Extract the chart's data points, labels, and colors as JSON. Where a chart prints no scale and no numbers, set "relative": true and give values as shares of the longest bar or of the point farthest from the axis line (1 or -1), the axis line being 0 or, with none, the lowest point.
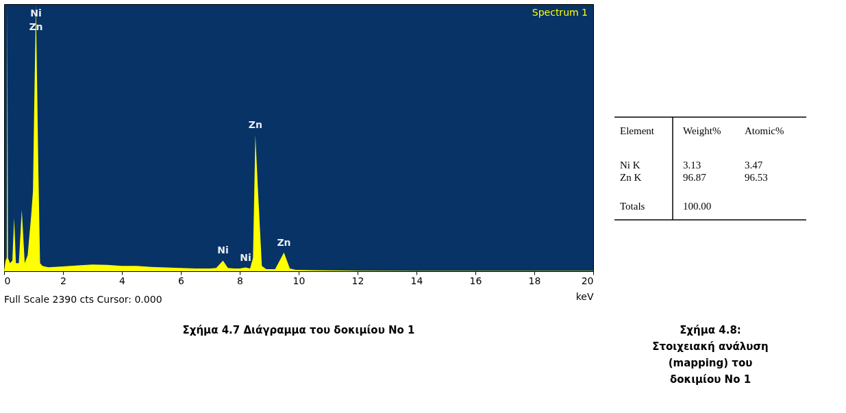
{
  "chart_data": [
    {
      "type": "area",
      "relative": true,
      "title": "Spectrum 1",
      "xlabel": "keV",
      "x": [
        0,
        0.05,
        0.09,
        0.11,
        0.13,
        0.2,
        0.28,
        0.34,
        0.4,
        0.5,
        0.6,
        0.7,
        0.8,
        0.92,
        0.98,
        1.02,
        1.08,
        1.16,
        1.22,
        1.3,
        1.5,
        2,
        2.5,
        3,
        3.5,
        4,
        4.5,
        5,
        5.5,
        6,
        6.5,
        7,
        7.2,
        7.43,
        7.6,
        7.8,
        8.0,
        8.2,
        8.35,
        8.45,
        8.53,
        8.62,
        8.75,
        8.9,
        9.2,
        9.5,
        9.7,
        9.9,
        10.5,
        11,
        12,
        14,
        16,
        18,
        20
      ],
      "series": [
        {
          "color": "#ffff00",
          "values": [
            0,
            0.04,
            0.05,
            1,
            0.05,
            0.03,
            0.04,
            0.2,
            0.03,
            0.03,
            0.23,
            0.03,
            0.06,
            0.21,
            0.3,
            0.6,
            1,
            0.4,
            0.03,
            0.02,
            0.015,
            0.018,
            0.022,
            0.025,
            0.024,
            0.02,
            0.02,
            0.016,
            0.014,
            0.012,
            0.01,
            0.01,
            0.012,
            0.04,
            0.012,
            0.01,
            0.01,
            0.014,
            0.01,
            0.05,
            0.51,
            0.3,
            0.02,
            0.008,
            0.008,
            0.07,
            0.01,
            0.005,
            0.004,
            0.003,
            0.002,
            0.001,
            0.001,
            0.001,
            0.001
          ]
        }
      ],
      "xlim": [
        0,
        20
      ],
      "xticks": [
        0,
        2,
        4,
        6,
        8,
        10,
        12,
        14,
        16,
        18,
        20
      ],
      "grid": false,
      "annotations": [
        {
          "text": "Ni",
          "x": 1.08,
          "y": 1
        },
        {
          "text": "Zn",
          "x": 1.08,
          "y": 1
        },
        {
          "text": "Zn",
          "x": 8.53,
          "y": 0.51
        },
        {
          "text": "Ni",
          "x": 7.43,
          "y": 0.04
        },
        {
          "text": "Ni",
          "x": 8.2,
          "y": 0.014
        },
        {
          "text": "Zn",
          "x": 9.5,
          "y": 0.07
        },
        "Full Scale 2390 cts Cursor: 0.000",
        "Σχήμα 4.7 Διάγραμμα του δοκιμίου No 1"
      ]
    },
    {
      "type": "other",
      "annotations": [
        "Element",
        "Weight%",
        "Atomic%",
        "Ni K",
        "3.13",
        "3.47",
        "Zn K",
        "96.87",
        "96.53",
        "Totals",
        "100.00",
        "Σχήμα 4.8: Στοιχειακή ανάλυση (mapping) του δοκιμίου No 1"
      ]
    }
  ]
}
